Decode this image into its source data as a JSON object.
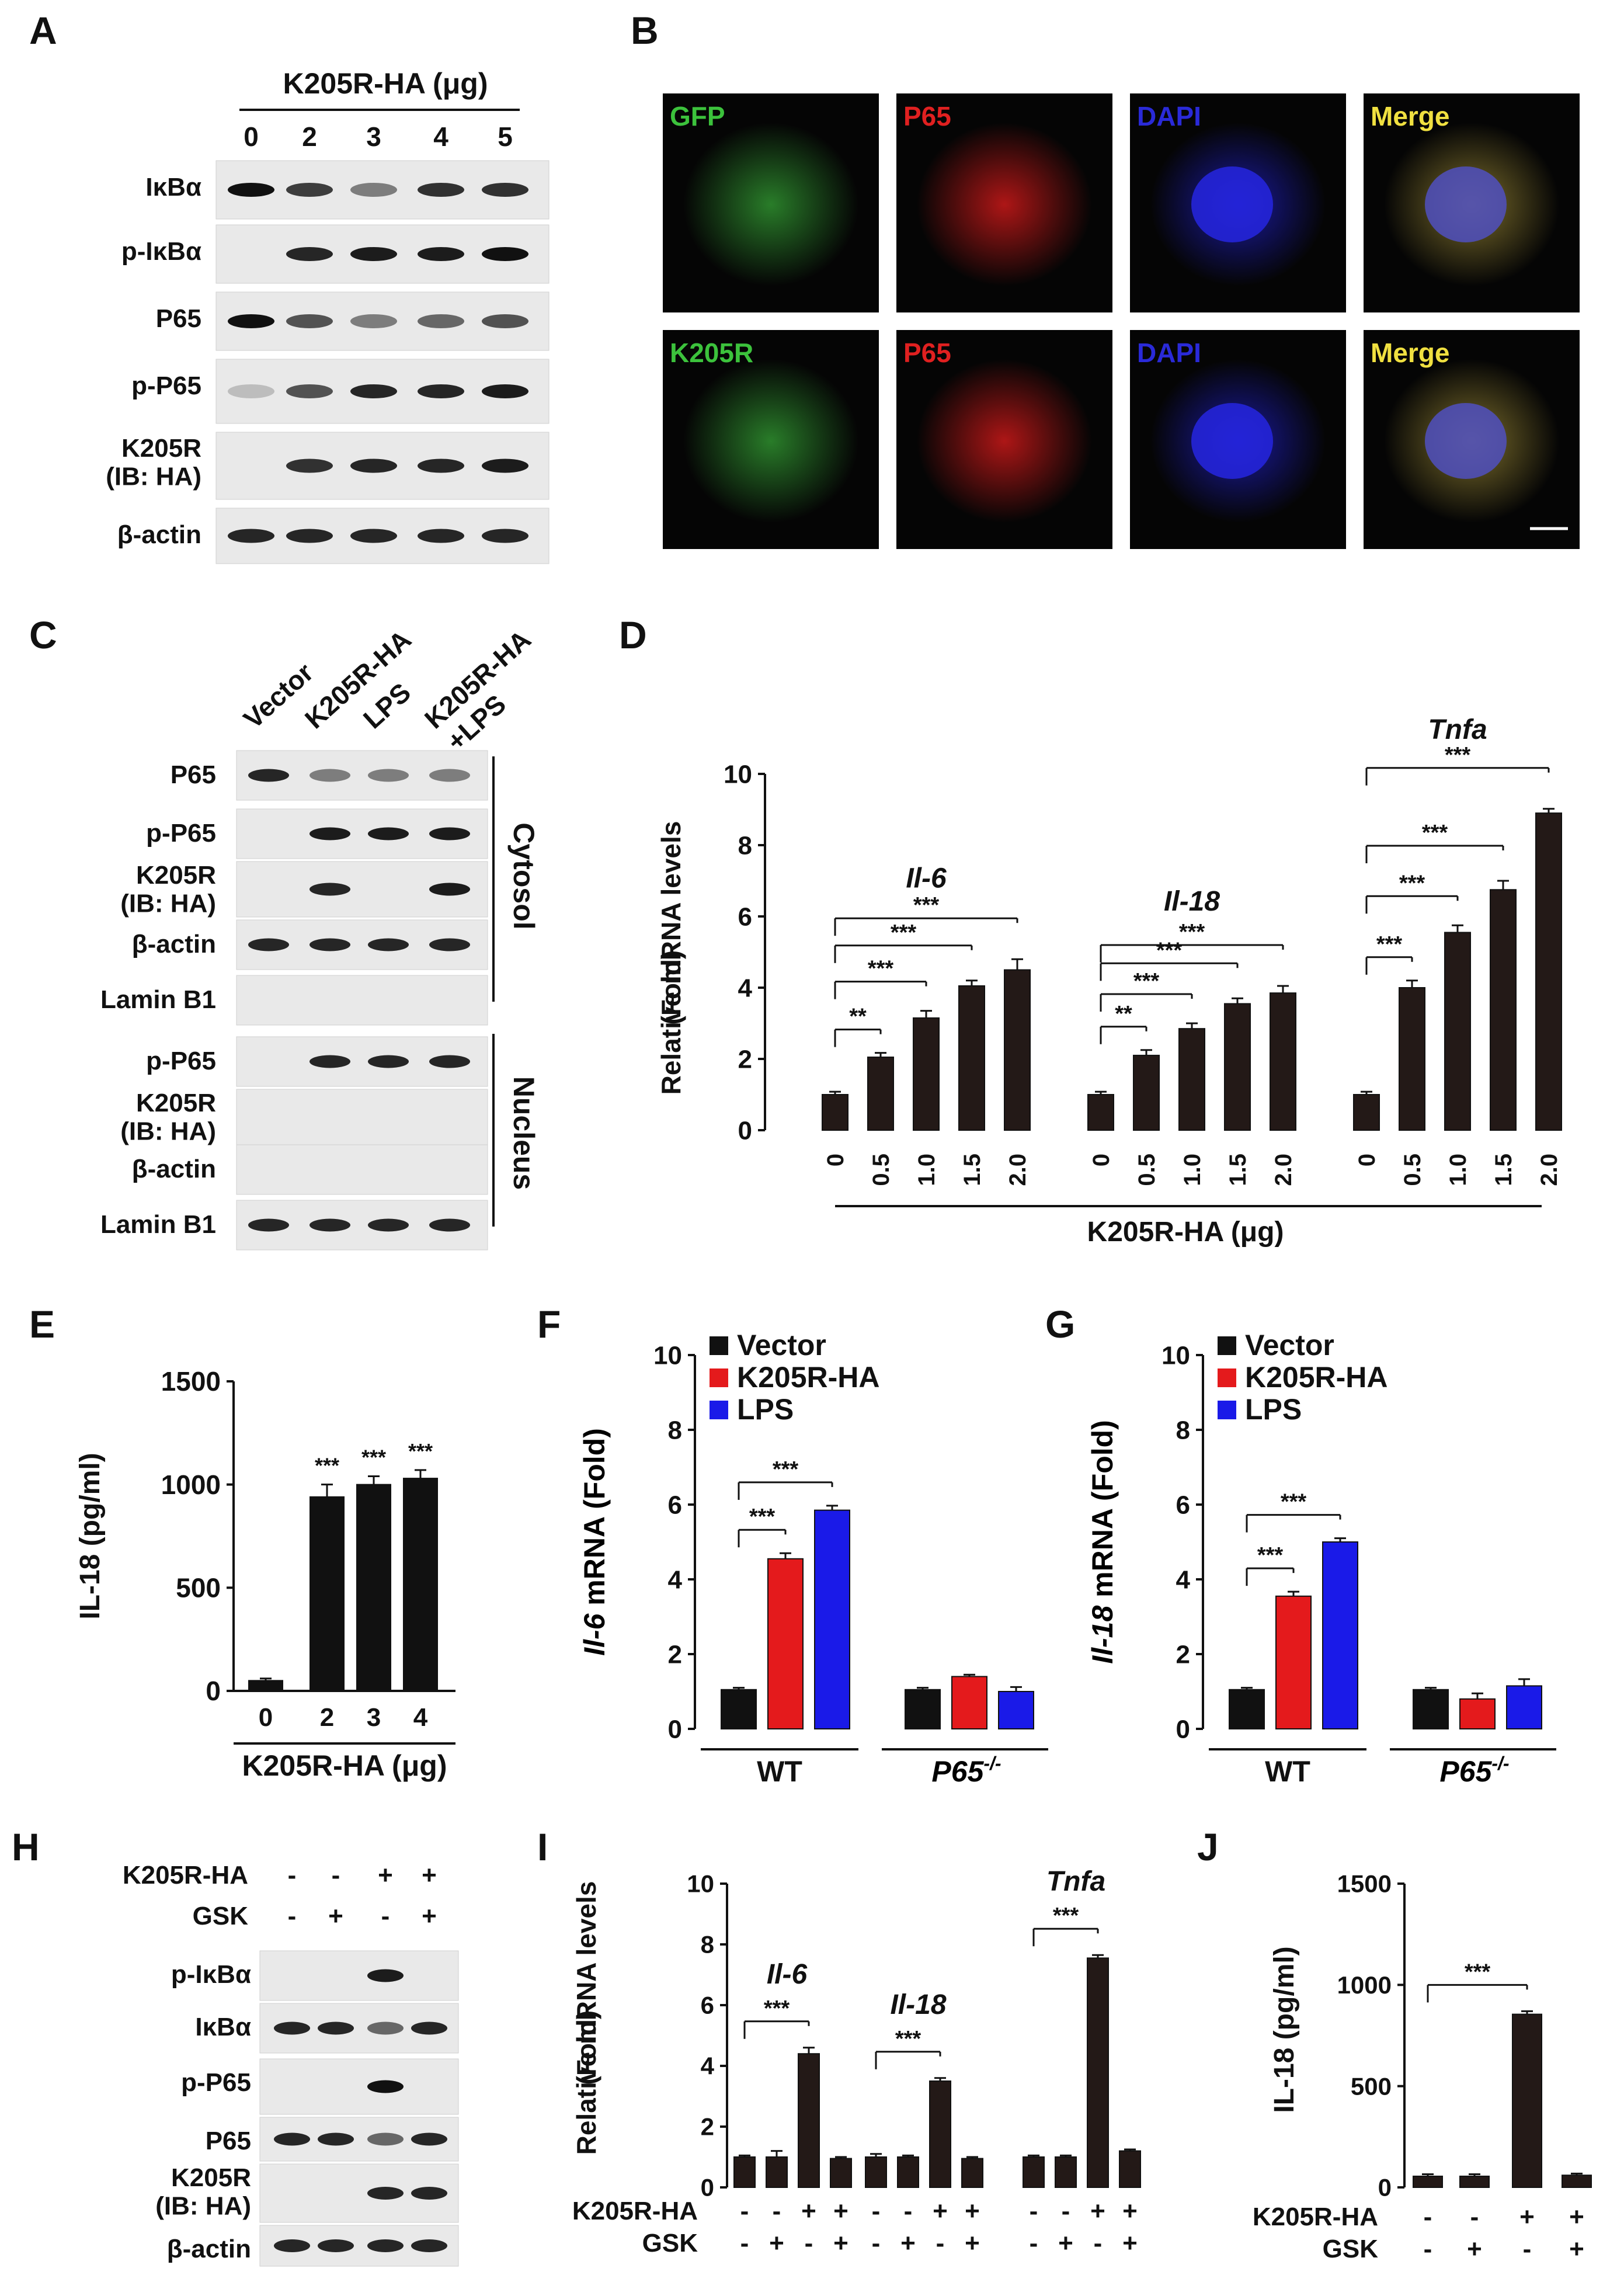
{
  "figure": {
    "panel_letters": [
      "A",
      "B",
      "C",
      "D",
      "E",
      "F",
      "G",
      "H",
      "I",
      "J"
    ]
  },
  "panel_A": {
    "header": "K205R-HA (μg)",
    "lanes": [
      "0",
      "2",
      "3",
      "4",
      "5"
    ],
    "rows": [
      "IκBα",
      "p-IκBα",
      "P65",
      "p-P65",
      "K205R\n(IB: HA)",
      "β-actin"
    ]
  },
  "panel_B": {
    "rows": [
      {
        "tiles": [
          {
            "label": "GFP",
            "color": "#3cc23c"
          },
          {
            "label": "P65",
            "color": "#e02020"
          },
          {
            "label": "DAPI",
            "color": "#2a2ad8"
          },
          {
            "label": "Merge",
            "color": "#f0e040"
          }
        ]
      },
      {
        "tiles": [
          {
            "label": "K205R",
            "color": "#3cc23c"
          },
          {
            "label": "P65",
            "color": "#e02020"
          },
          {
            "label": "DAPI",
            "color": "#2a2ad8"
          },
          {
            "label": "Merge",
            "color": "#f0e040"
          }
        ]
      }
    ]
  },
  "panel_C": {
    "lanes": [
      "Vector",
      "K205R-HA",
      "LPS",
      "K205R-HA\n+LPS"
    ],
    "rows": [
      "P65",
      "p-P65",
      "K205R\n(IB: HA)",
      "β-actin",
      "Lamin B1",
      "p-P65",
      "K205R\n(IB: HA)",
      "β-actin",
      "Lamin B1"
    ],
    "groups": [
      "Cytosol",
      "Nucleus"
    ]
  },
  "panel_E_labels": {
    "xlabel": "K205R-HA (μg)",
    "ylabel": "IL-18  (pg/ml)"
  },
  "panel_F_labels": {
    "ylabel_italic": "Il-6",
    "ylabel_rest": " mRNA (Fold)",
    "groups": [
      "WT",
      "P65-/-"
    ]
  },
  "panel_G_labels": {
    "ylabel_italic": "Il-18",
    "ylabel_rest": " mRNA (Fold)",
    "groups": [
      "WT",
      "P65-/-"
    ]
  },
  "panel_H": {
    "conditions": [
      {
        "name": "K205R-HA",
        "signs": [
          "-",
          "-",
          "+",
          "+"
        ]
      },
      {
        "name": "GSK",
        "signs": [
          "-",
          "+",
          "-",
          "+"
        ]
      }
    ],
    "rows": [
      "p-IκBα",
      "IκBα",
      "p-P65",
      "P65",
      "K205R\n(IB: HA)",
      "β-actin"
    ]
  },
  "panel_I_conditions": [
    {
      "name": "K205R-HA",
      "signs": [
        "-",
        "-",
        "+",
        "+",
        "-",
        "-",
        "+",
        "+",
        "-",
        "-",
        "+",
        "+"
      ]
    },
    {
      "name": "GSK",
      "signs": [
        "-",
        "+",
        "-",
        "+",
        "-",
        "+",
        "-",
        "+",
        "-",
        "+",
        "-",
        "+"
      ]
    }
  ],
  "panel_J_conditions": [
    {
      "name": "K205R-HA",
      "signs": [
        "-",
        "-",
        "+",
        "+"
      ]
    },
    {
      "name": "GSK",
      "signs": [
        "-",
        "+",
        "-",
        "+"
      ]
    }
  ],
  "chart_data": [
    {
      "id": "D",
      "type": "bar",
      "ylabel": "Relative mRNA levels\n(Fold)",
      "xlabel": "K205R-HA (μg)",
      "ylim": [
        0,
        10
      ],
      "yticks": [
        0,
        2,
        4,
        6,
        8,
        10
      ],
      "groups": [
        {
          "name": "Il-6",
          "categories": [
            "0",
            "0.5",
            "1.0",
            "1.5",
            "2.0"
          ],
          "values": [
            1.0,
            2.05,
            3.15,
            4.05,
            4.5
          ],
          "errors": [
            0.08,
            0.12,
            0.2,
            0.15,
            0.3
          ],
          "sig": [
            {
              "to": 1,
              "label": "**"
            },
            {
              "to": 2,
              "label": "***"
            },
            {
              "to": 3,
              "label": "***"
            },
            {
              "to": 4,
              "label": "***"
            }
          ]
        },
        {
          "name": "Il-18",
          "categories": [
            "0",
            "0.5",
            "1.0",
            "1.5",
            "2.0"
          ],
          "values": [
            1.0,
            2.1,
            2.85,
            3.55,
            3.85
          ],
          "errors": [
            0.08,
            0.15,
            0.15,
            0.15,
            0.2
          ],
          "sig": [
            {
              "to": 1,
              "label": "**"
            },
            {
              "to": 2,
              "label": "***"
            },
            {
              "to": 3,
              "label": "***"
            },
            {
              "to": 4,
              "label": "***"
            }
          ]
        },
        {
          "name": "Tnfa",
          "categories": [
            "0",
            "0.5",
            "1.0",
            "1.5",
            "2.0"
          ],
          "values": [
            1.0,
            4.0,
            5.55,
            6.75,
            8.9
          ],
          "errors": [
            0.08,
            0.2,
            0.2,
            0.25,
            0.12
          ],
          "sig": [
            {
              "to": 1,
              "label": "***"
            },
            {
              "to": 2,
              "label": "***"
            },
            {
              "to": 3,
              "label": "***"
            },
            {
              "to": 4,
              "label": "***"
            }
          ]
        }
      ]
    },
    {
      "id": "E",
      "type": "bar",
      "ylabel": "IL-18  (pg/ml)",
      "xlabel": "K205R-HA (μg)",
      "ylim": [
        0,
        1500
      ],
      "yticks": [
        0,
        500,
        1000,
        1500
      ],
      "categories": [
        "0",
        "2",
        "3",
        "4"
      ],
      "values": [
        50,
        940,
        1000,
        1030
      ],
      "errors": [
        10,
        60,
        40,
        40
      ],
      "sig_labels": [
        "",
        "***",
        "***",
        "***"
      ]
    },
    {
      "id": "F",
      "type": "bar",
      "ylim": [
        0,
        10
      ],
      "yticks": [
        0,
        2,
        4,
        6,
        8,
        10
      ],
      "legend": [
        "Vector",
        "K205R-HA",
        "LPS"
      ],
      "colors": [
        "#111111",
        "#e41a1c",
        "#1a1ae8"
      ],
      "groups": [
        "WT",
        "P65-/-"
      ],
      "series": [
        {
          "name": "Vector",
          "values": [
            1.05,
            1.05
          ],
          "errors": [
            0.05,
            0.05
          ]
        },
        {
          "name": "K205R-HA",
          "values": [
            4.55,
            1.4
          ],
          "errors": [
            0.15,
            0.05
          ]
        },
        {
          "name": "LPS",
          "values": [
            5.85,
            1.0
          ],
          "errors": [
            0.12,
            0.12
          ]
        }
      ],
      "sig": [
        {
          "group": 0,
          "to": 1,
          "label": "***"
        },
        {
          "group": 0,
          "to": 2,
          "label": "***"
        }
      ]
    },
    {
      "id": "G",
      "type": "bar",
      "ylim": [
        0,
        10
      ],
      "yticks": [
        0,
        2,
        4,
        6,
        8,
        10
      ],
      "legend": [
        "Vector",
        "K205R-HA",
        "LPS"
      ],
      "colors": [
        "#111111",
        "#e41a1c",
        "#1a1ae8"
      ],
      "groups": [
        "WT",
        "P65-/-"
      ],
      "series": [
        {
          "name": "Vector",
          "values": [
            1.05,
            1.05
          ],
          "errors": [
            0.05,
            0.05
          ]
        },
        {
          "name": "K205R-HA",
          "values": [
            3.55,
            0.8
          ],
          "errors": [
            0.12,
            0.15
          ]
        },
        {
          "name": "LPS",
          "values": [
            5.0,
            1.15
          ],
          "errors": [
            0.1,
            0.18
          ]
        }
      ],
      "sig": [
        {
          "group": 0,
          "to": 1,
          "label": "***"
        },
        {
          "group": 0,
          "to": 2,
          "label": "***"
        }
      ]
    },
    {
      "id": "I",
      "type": "bar",
      "ylabel": "Relative mRNA levels\n(Fold)",
      "ylim": [
        0,
        10
      ],
      "yticks": [
        0,
        2,
        4,
        6,
        8,
        10
      ],
      "groups": [
        {
          "name": "Il-6",
          "values": [
            1.0,
            1.0,
            4.4,
            0.95
          ],
          "errors": [
            0.05,
            0.2,
            0.2,
            0.05
          ],
          "sig_label": "***"
        },
        {
          "name": "Il-18",
          "values": [
            1.0,
            1.0,
            3.5,
            0.95
          ],
          "errors": [
            0.1,
            0.05,
            0.1,
            0.05
          ],
          "sig_label": "***"
        },
        {
          "name": "Tnfa",
          "values": [
            1.0,
            1.0,
            7.55,
            1.2
          ],
          "errors": [
            0.05,
            0.05,
            0.1,
            0.05
          ],
          "sig_label": "***"
        }
      ]
    },
    {
      "id": "J",
      "type": "bar",
      "ylabel": "IL-18  (pg/ml)",
      "ylim": [
        0,
        1500
      ],
      "yticks": [
        0,
        500,
        1000,
        1500
      ],
      "values": [
        55,
        55,
        855,
        60
      ],
      "errors": [
        10,
        10,
        15,
        8
      ],
      "sig_label": "***"
    }
  ]
}
